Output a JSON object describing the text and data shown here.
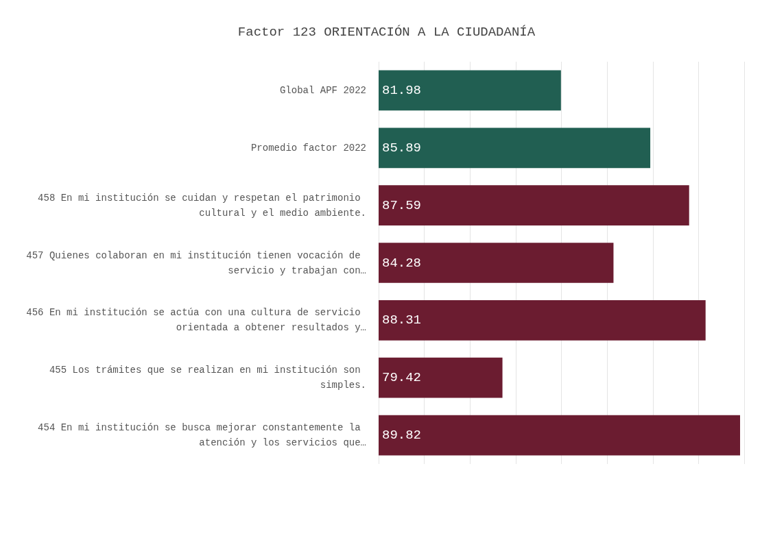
{
  "chart_data": {
    "type": "bar",
    "orientation": "horizontal",
    "title": "Factor 123 ORIENTACIÓN A LA CIUDADANÍA",
    "categories": [
      "Global APF 2022",
      "Promedio factor 2022",
      "458 En mi institución se cuidan y respetan el patrimonio cultural y el medio ambiente.",
      "457 Quienes colaboran en mi institución tienen vocación de servicio y trabajan con…",
      "456 En mi institución se actúa con una cultura de servicio orientada a obtener resultados y…",
      "455 Los trámites que se realizan en mi institución son simples.",
      "454 En mi institución se busca mejorar constantemente la atención y los servicios que…"
    ],
    "values": [
      81.98,
      85.89,
      87.59,
      84.28,
      88.31,
      79.42,
      89.82
    ],
    "colors": [
      "#215f52",
      "#215f52",
      "#6b1c30",
      "#6b1c30",
      "#6b1c30",
      "#6b1c30",
      "#6b1c30"
    ],
    "xlim": [
      74,
      90
    ],
    "xticks": [
      {
        "value": 74,
        "label": null
      },
      {
        "value": 76,
        "label": null
      },
      {
        "value": 78,
        "label": null
      },
      {
        "value": 80,
        "label": null
      },
      {
        "value": 82,
        "label": null
      },
      {
        "value": 84,
        "label": null
      },
      {
        "value": 86,
        "label": null
      },
      {
        "value": 88,
        "label": null
      },
      {
        "value": 90,
        "label": null
      }
    ],
    "grid": "x",
    "tick_labels": "y",
    "data_labels": true
  }
}
